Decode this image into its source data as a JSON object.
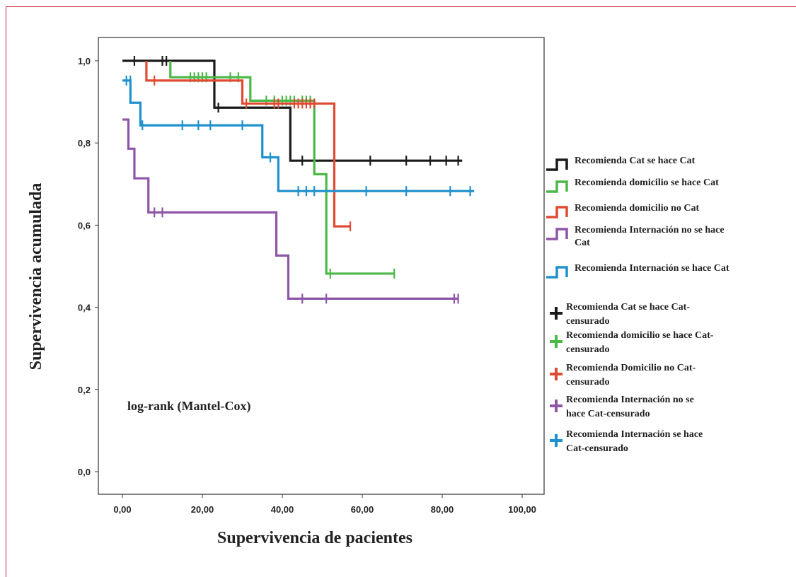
{
  "chart_data": {
    "type": "line",
    "title": "",
    "xlabel": "Supervivencia de pacientes",
    "ylabel": "Supervivencia acumulada",
    "xlim": [
      0,
      100
    ],
    "ylim": [
      0,
      1
    ],
    "xticks": [
      "0,00",
      "20,00",
      "40,00",
      "60,00",
      "80,00",
      "100,00"
    ],
    "yticks": [
      "0,0",
      "0,2",
      "0,4",
      "0,6",
      "0,8",
      "1,0"
    ],
    "annotation": "log-rank (Mantel-Cox)",
    "grid": false,
    "legend_position": "right",
    "series": [
      {
        "name": "Recomienda Cat se hace Cat",
        "color": "#1a1a1a",
        "steps": [
          [
            0,
            1.0
          ],
          [
            23,
            0.886
          ],
          [
            42,
            0.757
          ],
          [
            85,
            0.757
          ]
        ],
        "censor_name": "Recomienda Cat se hace Cat-censurado",
        "censored": [
          [
            3,
            1.0
          ],
          [
            10,
            1.0
          ],
          [
            11,
            1.0
          ],
          [
            24,
            0.886
          ],
          [
            45,
            0.757
          ],
          [
            62,
            0.757
          ],
          [
            71,
            0.757
          ],
          [
            77,
            0.757
          ],
          [
            81,
            0.757
          ],
          [
            84,
            0.757
          ]
        ]
      },
      {
        "name": "Recomienda domicilio se hace Cat",
        "color": "#4cb848",
        "steps": [
          [
            12,
            1.0
          ],
          [
            12,
            0.96
          ],
          [
            32,
            0.903
          ],
          [
            48,
            0.724
          ],
          [
            51,
            0.482
          ],
          [
            68,
            0.482
          ]
        ],
        "censor_name": "Recomienda domicilio se hace Cat-censurado",
        "censored": [
          [
            17,
            0.96
          ],
          [
            18,
            0.96
          ],
          [
            19,
            0.96
          ],
          [
            20,
            0.96
          ],
          [
            21,
            0.96
          ],
          [
            27,
            0.96
          ],
          [
            29,
            0.96
          ],
          [
            36,
            0.903
          ],
          [
            38,
            0.903
          ],
          [
            40,
            0.903
          ],
          [
            41,
            0.903
          ],
          [
            42,
            0.903
          ],
          [
            43,
            0.903
          ],
          [
            45,
            0.903
          ],
          [
            46,
            0.903
          ],
          [
            47,
            0.903
          ],
          [
            52,
            0.482
          ],
          [
            68,
            0.482
          ]
        ]
      },
      {
        "name": "Recomienda domicilio no Cat",
        "color": "#e14a32",
        "steps": [
          [
            6,
            1.0
          ],
          [
            6,
            0.952
          ],
          [
            30,
            0.896
          ],
          [
            53,
            0.597
          ],
          [
            57,
            0.597
          ]
        ],
        "censor_name": "Recomienda Domicilio no Cat-censurado",
        "censored": [
          [
            8,
            0.952
          ],
          [
            31,
            0.896
          ],
          [
            38,
            0.896
          ],
          [
            39,
            0.896
          ],
          [
            43,
            0.896
          ],
          [
            44,
            0.896
          ],
          [
            45,
            0.896
          ],
          [
            46,
            0.896
          ],
          [
            47,
            0.896
          ],
          [
            48,
            0.896
          ],
          [
            57,
            0.597
          ]
        ]
      },
      {
        "name": "Recomienda Internación no se hace Cat",
        "color": "#8e56a6",
        "steps": [
          [
            0,
            0.857
          ],
          [
            1.5,
            0.786
          ],
          [
            3,
            0.714
          ],
          [
            6.5,
            0.631
          ],
          [
            38.5,
            0.526
          ],
          [
            41.5,
            0.421
          ],
          [
            84,
            0.421
          ]
        ],
        "censor_name": "Recomienda Internación no se hace Cat-censurado",
        "censored": [
          [
            8,
            0.631
          ],
          [
            10,
            0.631
          ],
          [
            45,
            0.421
          ],
          [
            51,
            0.421
          ],
          [
            83,
            0.421
          ],
          [
            84,
            0.421
          ]
        ]
      },
      {
        "name": "Recomienda Internación se hace Cat",
        "color": "#1f91cc",
        "steps": [
          [
            0,
            0.952
          ],
          [
            2,
            0.898
          ],
          [
            4.5,
            0.843
          ],
          [
            35,
            0.765
          ],
          [
            39,
            0.683
          ],
          [
            88,
            0.683
          ]
        ],
        "censor_name": "Recomienda Internación se hace Cat-censurado",
        "censored": [
          [
            1,
            0.952
          ],
          [
            2,
            0.952
          ],
          [
            5,
            0.843
          ],
          [
            15,
            0.843
          ],
          [
            19,
            0.843
          ],
          [
            22,
            0.843
          ],
          [
            30,
            0.843
          ],
          [
            37,
            0.765
          ],
          [
            44,
            0.683
          ],
          [
            46,
            0.683
          ],
          [
            48,
            0.683
          ],
          [
            61,
            0.683
          ],
          [
            71,
            0.683
          ],
          [
            82,
            0.683
          ],
          [
            87,
            0.683
          ]
        ]
      }
    ]
  }
}
